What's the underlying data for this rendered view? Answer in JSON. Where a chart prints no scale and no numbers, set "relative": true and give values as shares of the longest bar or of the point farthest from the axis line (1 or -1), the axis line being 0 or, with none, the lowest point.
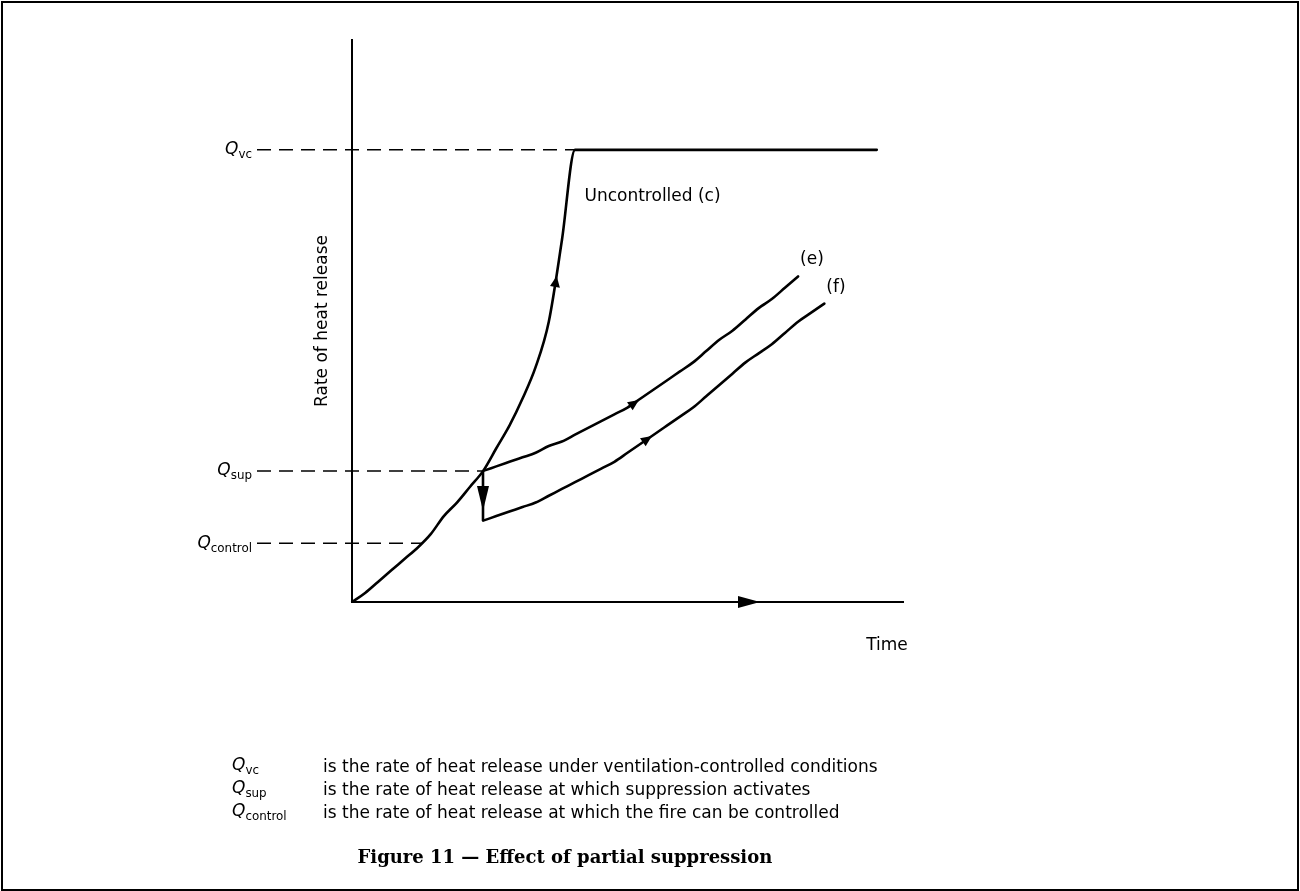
{
  "chart_data": {
    "type": "line",
    "relative": true,
    "xlabel": "Time",
    "ylabel": "Rate of heat release",
    "title": "Figure 11 — Effect of partial suppression",
    "categories": [
      null,
      null,
      null,
      null,
      null,
      null,
      null,
      null,
      null,
      null,
      null,
      null,
      null,
      null,
      null,
      null,
      null,
      null,
      null,
      null,
      null,
      null,
      null,
      null,
      null,
      null,
      null,
      null,
      null,
      null,
      null,
      null,
      null,
      null,
      null,
      null,
      null,
      null,
      null,
      null,
      null,
      null,
      null
    ],
    "series": [
      {
        "name": "Uncontrolled (c)",
        "color": "#000000",
        "values": [
          0,
          0.02,
          0.045,
          0.07,
          0.095,
          0.12,
          0.15,
          0.19,
          0.22,
          0.255,
          0.29,
          0.34,
          0.39,
          0.45,
          0.52,
          0.62,
          0.8,
          1,
          1,
          1,
          1,
          1,
          1,
          1,
          1,
          1,
          1,
          1,
          1,
          1,
          1,
          1,
          1,
          1,
          1,
          1,
          1,
          1,
          1,
          1,
          1,
          null,
          null
        ]
      },
      {
        "name": "(e)",
        "color": "#000000",
        "values": [
          null,
          null,
          null,
          null,
          null,
          null,
          null,
          null,
          null,
          null,
          0.29,
          0.3,
          0.31,
          0.32,
          0.33,
          0.345,
          0.355,
          0.37,
          0.385,
          0.4,
          0.415,
          0.43,
          0.45,
          0.47,
          0.49,
          0.51,
          0.53,
          0.555,
          0.58,
          0.6,
          0.625,
          0.65,
          0.67,
          0.695,
          0.72,
          null,
          null,
          null,
          null,
          null,
          null,
          null,
          null
        ]
      },
      {
        "name": "(f)",
        "color": "#000000",
        "values": [
          null,
          null,
          null,
          null,
          null,
          null,
          null,
          null,
          null,
          null,
          0.18,
          0.19,
          0.2,
          0.21,
          0.22,
          0.235,
          0.25,
          0.265,
          0.28,
          0.295,
          0.31,
          0.33,
          0.35,
          0.37,
          0.39,
          0.41,
          0.43,
          0.455,
          0.48,
          0.505,
          0.53,
          0.55,
          0.57,
          0.595,
          0.62,
          0.64,
          0.66,
          null,
          null,
          null,
          null,
          null,
          null
        ]
      }
    ],
    "ref_lines": [
      {
        "axis": "y",
        "value": 1,
        "label": "Q$_{vc}$",
        "color": "#000000",
        "line_style": "dashed"
      },
      {
        "axis": "y",
        "value": 0.29,
        "label": "Q$_{sup}$",
        "color": "#000000",
        "line_style": "dashed"
      },
      {
        "axis": "y",
        "value": 0.13,
        "label": "Q$_{control}$",
        "color": "#000000",
        "line_style": "dashed"
      }
    ],
    "annotations": [
      "Q$_{vc}$\tis the rate of heat release under ventilation-controlled conditions",
      "Q$_{sup}$\tis the rate of heat release at which suppression activates",
      "Q$_{control}$\tis the rate of heat release at which the fire can be controlled"
    ],
    "grid": false,
    "legend": false,
    "marker": "none",
    "line_style": "solid"
  }
}
